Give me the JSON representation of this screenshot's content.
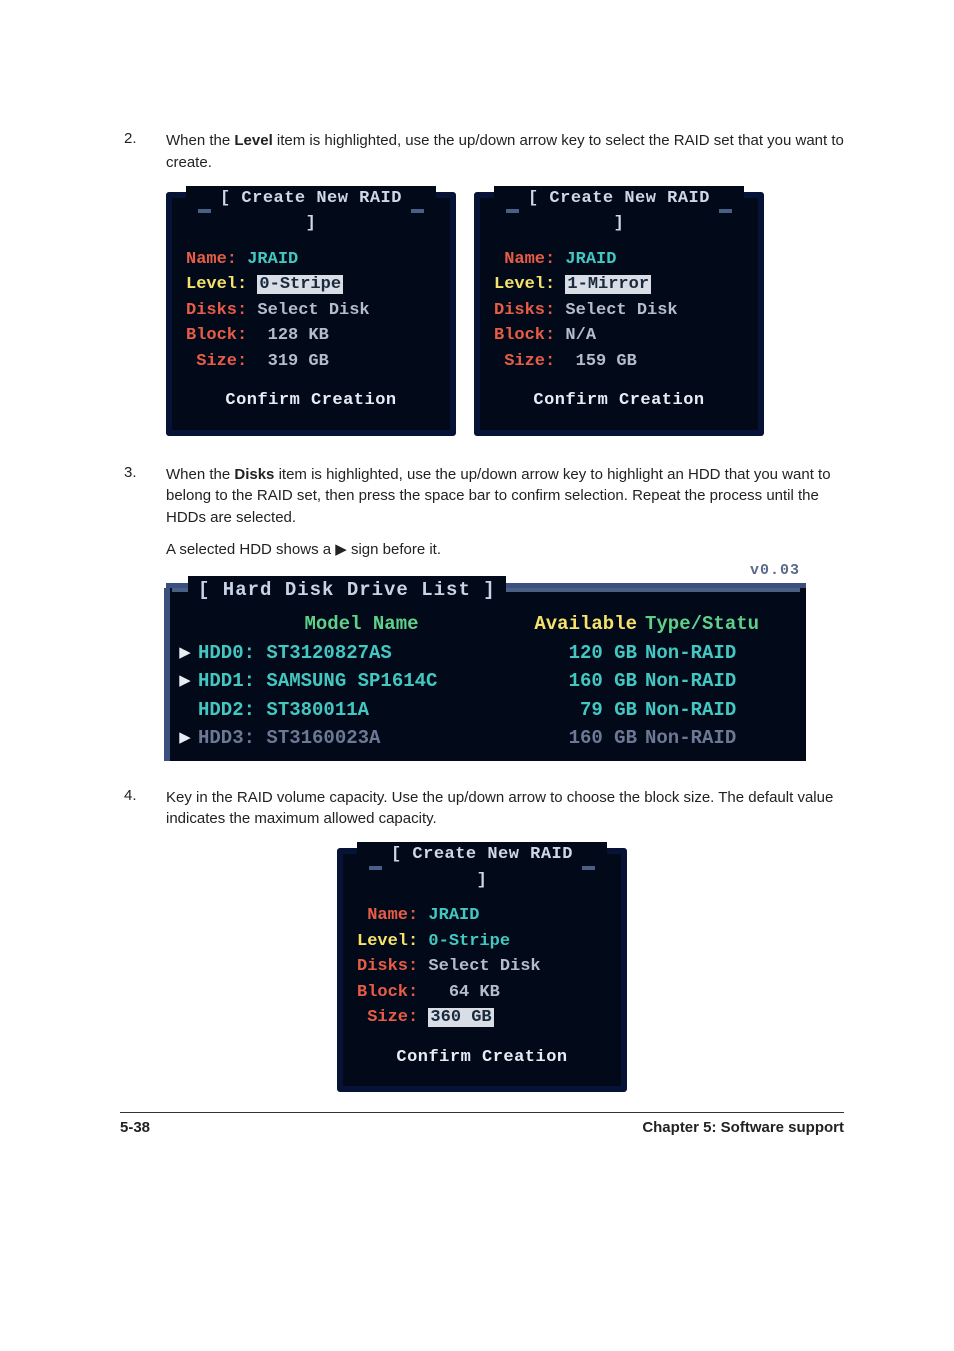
{
  "steps": {
    "s2": {
      "num": "2.",
      "text_a": "When the ",
      "bold": "Level",
      "text_b": " item is highlighted, use the up/down arrow key to select the RAID set that you want to create."
    },
    "s3": {
      "num": "3.",
      "text_a": "When the ",
      "bold": "Disks",
      "text_b": " item is highlighted, use the up/down arrow key to highlight an HDD that you want to belong to the RAID set, then press the space bar to confirm selection. Repeat the process until the HDDs are selected.",
      "sub_a": "A selected HDD shows a ",
      "tri": "▶",
      "sub_b": " sign before it."
    },
    "s4": {
      "num": "4.",
      "text": "Key in the RAID volume capacity. Use the up/down arrow to choose the block size. The default value indicates the maximum allowed capacity."
    }
  },
  "bios_title": "[ Create New RAID ]",
  "hdd_title": "[ Hard Disk Drive List ]",
  "confirm": "Confirm Creation",
  "panel1": {
    "name_lbl": "Name:",
    "name_val": " JRAID",
    "level_lbl": "Level:",
    "level_val": "0-Stripe",
    "disks_lbl": "Disks:",
    "disks_val": " Select Disk",
    "block_lbl": "Block:",
    "block_val": "  128 KB",
    "size_lbl": " Size:",
    "size_val": "  319 GB"
  },
  "panel2": {
    "name_lbl": " Name:",
    "name_val": " JRAID",
    "level_lbl": "Level:",
    "level_val": "1-Mirror",
    "disks_lbl": "Disks:",
    "disks_val": " Select Disk",
    "block_lbl": "Block:",
    "block_val": " N/A",
    "size_lbl": " Size:",
    "size_val": "  159 GB"
  },
  "panel3": {
    "name_lbl": " Name:",
    "name_val": " JRAID",
    "level_lbl": "Level:",
    "level_val": " 0-Stripe",
    "disks_lbl": "Disks:",
    "disks_val": " Select Disk",
    "block_lbl": "Block:",
    "block_val": "   64 KB",
    "size_lbl": " Size:",
    "size_val": "360 GB"
  },
  "hdd": {
    "corner": "v0.03",
    "h_model": "Model Name",
    "h_avail": "Available",
    "h_type": " Type/Statu",
    "rows": [
      {
        "mark": "▶",
        "model": "HDD0: ST3120827AS",
        "avail": "120 GB",
        "type": " Non-RAID",
        "cls": "lbl-cyan"
      },
      {
        "mark": "▶",
        "model": "HDD1: SAMSUNG SP1614C",
        "avail": "160 GB",
        "type": " Non-RAID",
        "cls": "lbl-cyan"
      },
      {
        "mark": "",
        "model": "HDD2: ST380011A",
        "avail": "79 GB",
        "type": " Non-RAID",
        "cls": "lbl-cyan"
      },
      {
        "mark": "▶",
        "model": "HDD3: ST3160023A",
        "avail": "160 GB",
        "type": " Non-RAID",
        "cls": "lbl-dim"
      }
    ]
  },
  "footer": {
    "left": "5-38",
    "right": "Chapter 5: Software support"
  }
}
